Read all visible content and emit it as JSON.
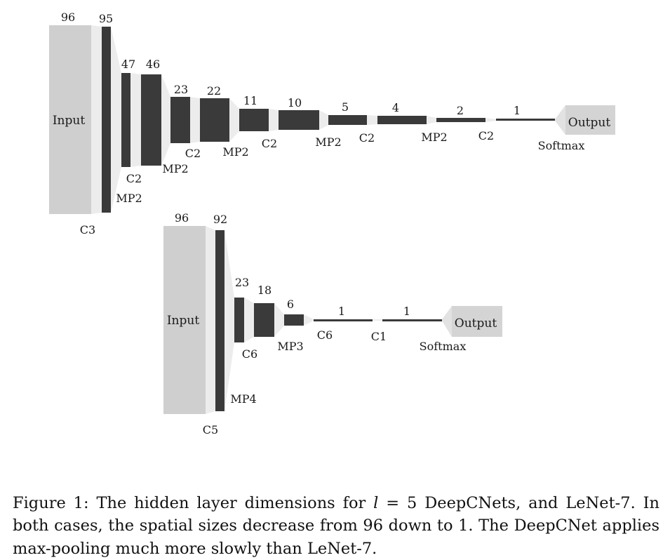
{
  "colors": {
    "input_fill": "#cfcfcf",
    "layer_fill": "#3a3a3a",
    "funnel_fill": "#ececec",
    "output_fill": "#d4d4d4",
    "text": "#1a1a1a"
  },
  "deepcnet": {
    "input_label": "Input",
    "output_label": "Output",
    "sizes": [
      "96",
      "95",
      "47",
      "46",
      "23",
      "22",
      "11",
      "10",
      "5",
      "4",
      "2",
      "1"
    ],
    "ops": [
      "C3",
      "MP2",
      "C2",
      "MP2",
      "C2",
      "MP2",
      "C2",
      "MP2",
      "C2",
      "MP2",
      "C2",
      "Softmax"
    ]
  },
  "lenet": {
    "input_label": "Input",
    "output_label": "Output",
    "sizes": [
      "96",
      "92",
      "23",
      "18",
      "6",
      "1",
      "1"
    ],
    "ops": [
      "C5",
      "MP4",
      "C6",
      "MP3",
      "C6",
      "C1",
      "Softmax"
    ]
  },
  "caption": {
    "prefix": "Figure 1: The hidden layer dimensions for ",
    "variable": "l",
    "suffix": " = 5 DeepCNets, and LeNet-7. In both cases, the spatial sizes decrease from 96 down to 1. The DeepCNet applies max-pooling much more slowly than LeNet-7."
  }
}
